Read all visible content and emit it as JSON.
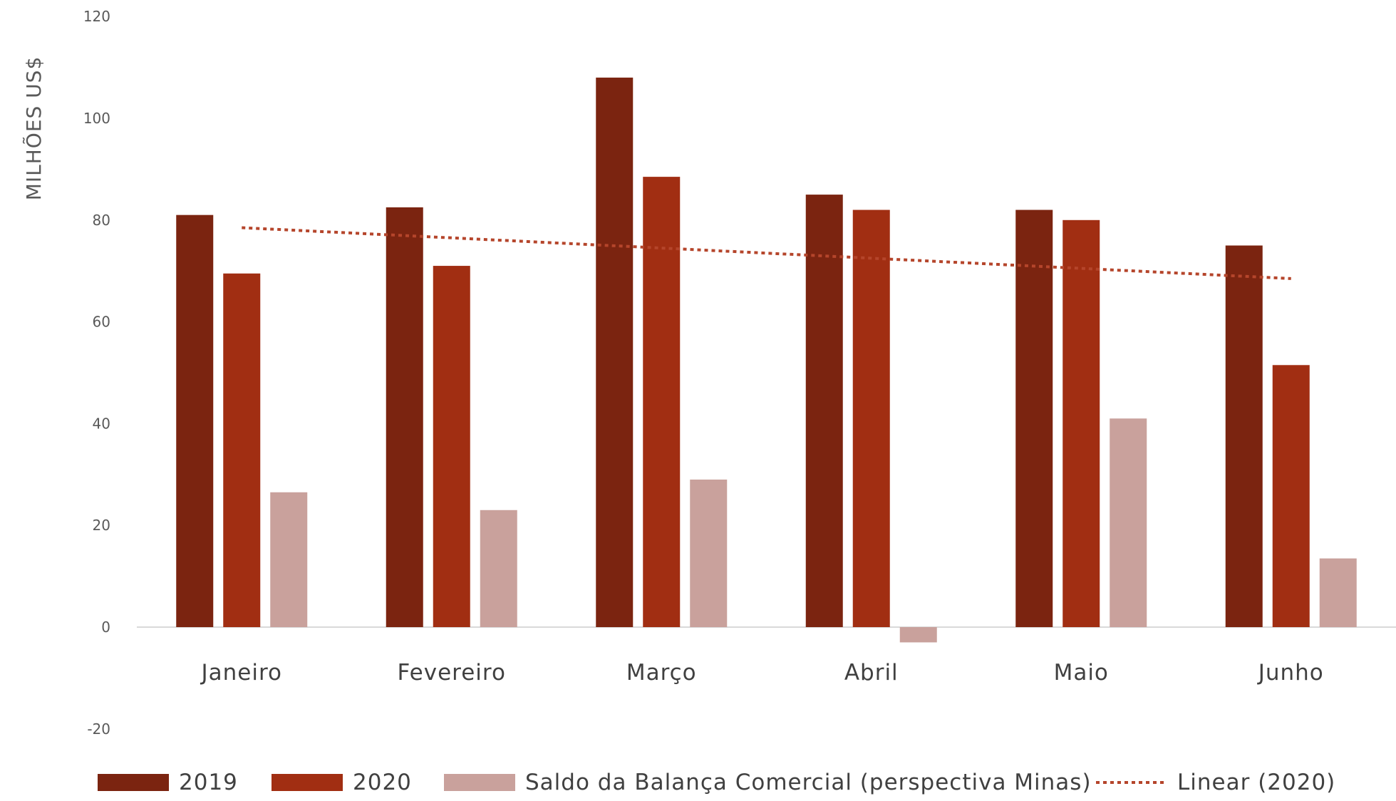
{
  "chart_data": {
    "type": "bar",
    "title": "",
    "xlabel": "",
    "ylabel": "MILHÕES US$",
    "ylim": [
      -20,
      120
    ],
    "yticks": [
      -20,
      0,
      20,
      40,
      60,
      80,
      100,
      120
    ],
    "grid": false,
    "legend_position": "bottom",
    "categories": [
      "Janeiro",
      "Fevereiro",
      "Março",
      "Abril",
      "Maio",
      "Junho"
    ],
    "series": [
      {
        "name": "2019",
        "color": "#7B2410",
        "values": [
          81,
          82.5,
          108,
          85,
          82,
          75
        ]
      },
      {
        "name": "2020",
        "color": "#A12E12",
        "values": [
          69.5,
          71,
          88.5,
          82,
          80,
          51.5
        ]
      },
      {
        "name": "Saldo da Balança Comercial (perspectiva Minas)",
        "color": "#C9A19C",
        "values": [
          26.5,
          23,
          29,
          -3,
          41,
          13.5
        ]
      }
    ],
    "trendline": {
      "name": "Linear (2020)",
      "of_series": "2020",
      "type": "linear",
      "color": "#B5452B",
      "start_value": 78.5,
      "end_value": 68.5
    }
  }
}
